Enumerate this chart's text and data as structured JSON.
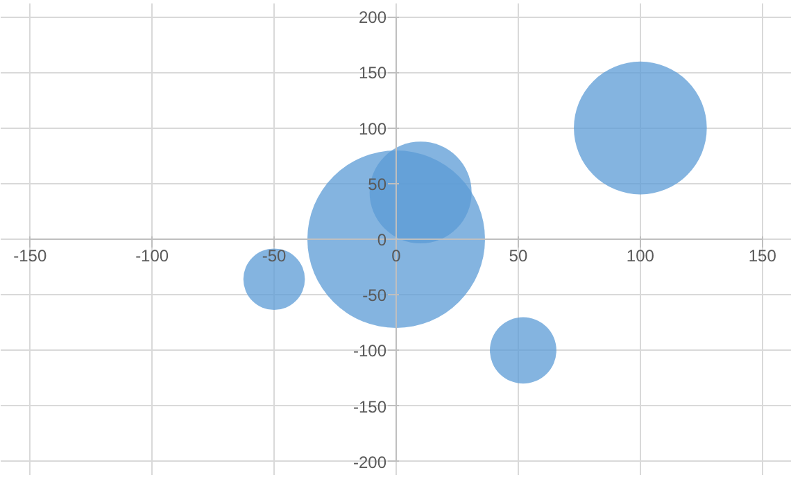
{
  "chart_data": {
    "type": "bubble",
    "x": [
      0,
      10,
      100,
      -50,
      52
    ],
    "values": [
      0,
      42,
      100,
      -36,
      -100
    ],
    "sizes": [
      1,
      0.33,
      0.56,
      0.12,
      0.14
    ],
    "color": "#5b9bd5",
    "xlim": [
      -150,
      150
    ],
    "ylim": [
      -200,
      200
    ],
    "xticks": [
      -150,
      -100,
      -50,
      0,
      50,
      100,
      150
    ],
    "yticks": [
      -200,
      -150,
      -100,
      -50,
      0,
      50,
      100,
      150,
      200
    ],
    "grid": true
  }
}
